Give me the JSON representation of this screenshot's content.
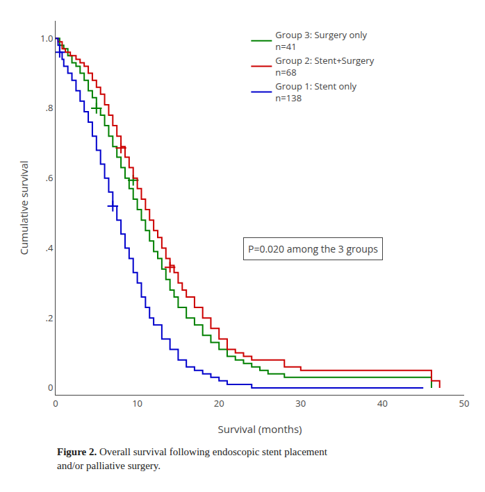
{
  "chart_data": {
    "type": "step",
    "xlabel": "Survival (months)",
    "ylabel": "Cumulative survival",
    "caption": {
      "bold": "Figure 2.",
      "text": " Overall survival following endoscopic stent placement\nand/or palliative surgery."
    },
    "annotations": [
      "P=0.020 among the 3 groups"
    ],
    "xlim": [
      0,
      50
    ],
    "ylim": [
      -0.02,
      1.05
    ],
    "xticks": [
      0,
      10,
      20,
      30,
      40,
      50
    ],
    "yticks": [
      0,
      {
        "value": 0.2,
        "label": ".2"
      },
      {
        "value": 0.4,
        "label": ".4"
      },
      {
        "value": 0.6,
        "label": ".6"
      },
      {
        "value": 0.8,
        "label": ".8"
      },
      {
        "value": 1.0,
        "label": "1.0"
      }
    ],
    "grid": false,
    "legend": "top",
    "series": [
      {
        "name": "Group 3: Surgery only",
        "n_label": "n=41",
        "color": "#008000",
        "marker": "cross",
        "x": [
          0,
          0.5,
          1,
          1.5,
          2,
          2.5,
          3,
          3.5,
          4,
          4.5,
          5,
          5.5,
          6,
          6.5,
          7,
          7.5,
          8,
          8.5,
          9,
          9.5,
          10,
          10.5,
          11,
          11.5,
          12,
          12.5,
          13,
          13.5,
          14,
          14.5,
          15,
          16,
          17,
          18,
          19,
          20,
          21,
          22,
          23,
          24,
          25,
          26,
          28,
          30,
          32,
          34,
          36,
          46
        ],
        "values": [
          1.0,
          0.98,
          0.97,
          0.95,
          0.93,
          0.92,
          0.9,
          0.88,
          0.85,
          0.83,
          0.8,
          0.78,
          0.75,
          0.72,
          0.69,
          0.66,
          0.63,
          0.6,
          0.57,
          0.54,
          0.51,
          0.48,
          0.45,
          0.42,
          0.39,
          0.37,
          0.34,
          0.31,
          0.28,
          0.26,
          0.23,
          0.2,
          0.18,
          0.15,
          0.13,
          0.11,
          0.09,
          0.08,
          0.07,
          0.06,
          0.05,
          0.04,
          0.03,
          0.03,
          0.03,
          0.03,
          0.03,
          0.0
        ],
        "censors_x": [
          5.0,
          9.5
        ],
        "censors_y": [
          0.8,
          0.594
        ]
      },
      {
        "name": "Group 2: Stent+Surgery",
        "n_label": "n=68",
        "color": "#CC0000",
        "marker": "cross",
        "x": [
          0,
          0.3,
          0.8,
          1.2,
          1.8,
          2.5,
          3,
          3.5,
          4,
          4.5,
          5,
          5.5,
          6,
          6.5,
          7,
          7.5,
          8,
          8.5,
          9,
          9.5,
          10,
          10.5,
          11,
          11.5,
          12,
          12.5,
          13,
          13.5,
          14,
          14.5,
          15,
          15.5,
          16,
          17,
          18,
          19,
          20,
          21,
          22,
          23,
          24,
          25,
          26,
          28,
          30,
          32,
          34,
          36,
          46,
          47
        ],
        "values": [
          1.0,
          0.99,
          0.97,
          0.96,
          0.95,
          0.94,
          0.93,
          0.92,
          0.9,
          0.88,
          0.86,
          0.84,
          0.81,
          0.78,
          0.75,
          0.72,
          0.69,
          0.66,
          0.63,
          0.6,
          0.57,
          0.54,
          0.51,
          0.48,
          0.45,
          0.43,
          0.4,
          0.37,
          0.35,
          0.33,
          0.3,
          0.28,
          0.26,
          0.23,
          0.2,
          0.17,
          0.14,
          0.11,
          0.1,
          0.09,
          0.08,
          0.08,
          0.08,
          0.06,
          0.05,
          0.05,
          0.05,
          0.05,
          0.02,
          0.0
        ],
        "censors_x": [
          8.0,
          14.0
        ],
        "censors_y": [
          0.686,
          0.345
        ]
      },
      {
        "name": "Group 1: Stent only",
        "n_label": "n=138",
        "color": "#0000CC",
        "marker": "cross",
        "x": [
          0,
          0.3,
          0.5,
          0.8,
          1,
          1.5,
          2,
          2.5,
          3,
          3.5,
          4,
          4.5,
          5,
          5.5,
          6,
          6.5,
          7,
          7.5,
          8,
          8.5,
          9,
          9.5,
          10,
          10.5,
          11,
          11.5,
          12,
          13,
          14,
          15,
          16,
          17,
          18,
          19,
          20,
          21,
          22,
          23,
          24,
          44,
          45
        ],
        "values": [
          1.0,
          0.98,
          0.96,
          0.94,
          0.92,
          0.9,
          0.88,
          0.85,
          0.82,
          0.79,
          0.76,
          0.72,
          0.68,
          0.64,
          0.6,
          0.56,
          0.52,
          0.48,
          0.44,
          0.4,
          0.37,
          0.33,
          0.3,
          0.26,
          0.23,
          0.2,
          0.18,
          0.14,
          0.11,
          0.08,
          0.06,
          0.05,
          0.04,
          0.03,
          0.02,
          0.01,
          0.01,
          0.01,
          0.0,
          0.0,
          0.0
        ],
        "censors_x": [
          0.5,
          7.0
        ],
        "censors_y": [
          0.96,
          0.52
        ]
      }
    ]
  }
}
